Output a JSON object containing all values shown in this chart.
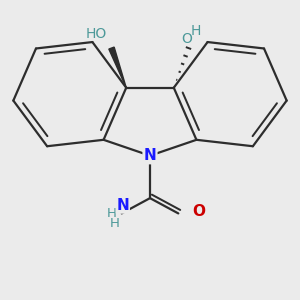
{
  "bg_color": "#ebebeb",
  "bond_color": "#2d2d2d",
  "N_color": "#1a1aff",
  "O_color": "#cc0000",
  "OH_color": "#4d9999",
  "line_width": 1.6,
  "font_size": 10,
  "xlim": [
    -2.6,
    2.6
  ],
  "ylim": [
    -2.8,
    2.4
  ]
}
